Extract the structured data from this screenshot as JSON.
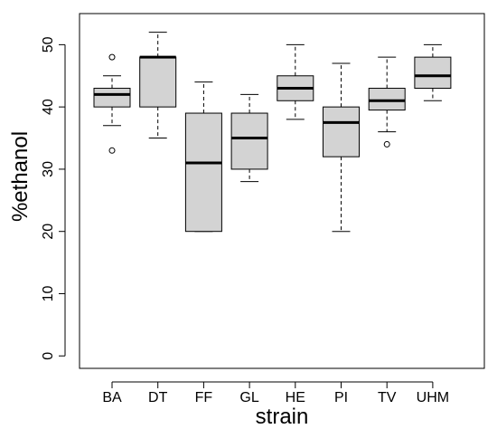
{
  "chart_data": {
    "type": "boxplot",
    "title": "",
    "xlabel": "strain",
    "ylabel": "%ethanol",
    "ylim": [
      -2,
      55
    ],
    "yticks": [
      0,
      10,
      20,
      30,
      40,
      50
    ],
    "grid": false,
    "legend": "none",
    "box_fill": "#d3d3d3",
    "stroke": "#000000",
    "categories": [
      "BA",
      "DT",
      "FF",
      "GL",
      "HE",
      "PI",
      "TV",
      "UHM"
    ],
    "boxes": [
      {
        "label": "BA",
        "whisker_low": 37,
        "q1": 40,
        "median": 42,
        "q3": 43,
        "whisker_high": 45,
        "outliers": [
          33,
          48
        ]
      },
      {
        "label": "DT",
        "whisker_low": 35,
        "q1": 40,
        "median": 48,
        "q3": 48,
        "whisker_high": 52,
        "outliers": []
      },
      {
        "label": "FF",
        "whisker_low": 20,
        "q1": 20,
        "median": 31,
        "q3": 39,
        "whisker_high": 44,
        "outliers": []
      },
      {
        "label": "GL",
        "whisker_low": 28,
        "q1": 30,
        "median": 35,
        "q3": 39,
        "whisker_high": 42,
        "outliers": []
      },
      {
        "label": "HE",
        "whisker_low": 38,
        "q1": 41,
        "median": 43,
        "q3": 45,
        "whisker_high": 50,
        "outliers": []
      },
      {
        "label": "PI",
        "whisker_low": 20,
        "q1": 32,
        "median": 37.5,
        "q3": 40,
        "whisker_high": 47,
        "outliers": []
      },
      {
        "label": "TV",
        "whisker_low": 36,
        "q1": 39.5,
        "median": 41,
        "q3": 43,
        "whisker_high": 48,
        "outliers": [
          34
        ]
      },
      {
        "label": "UHM",
        "whisker_low": 41,
        "q1": 43,
        "median": 45,
        "q3": 48,
        "whisker_high": 50,
        "outliers": []
      }
    ]
  }
}
